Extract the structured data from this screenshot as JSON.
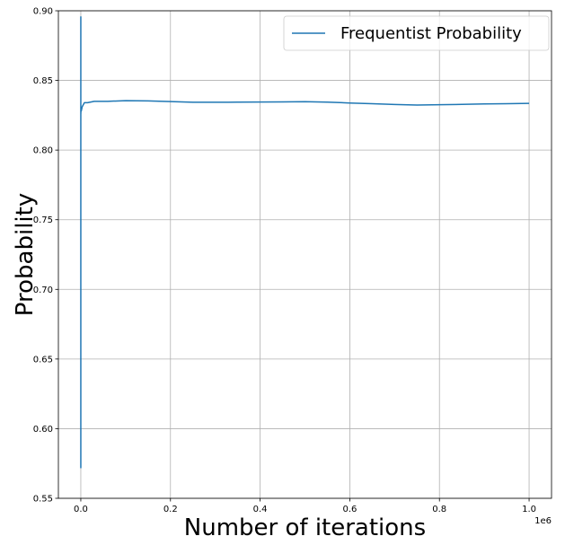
{
  "chart_data": {
    "type": "line",
    "title": "",
    "xlabel": "Number of iterations",
    "ylabel": "Probability",
    "x_offset_label": "1e6",
    "x_scale_factor": 1000000,
    "xlim": [
      -50000,
      1050000
    ],
    "ylim": [
      0.55,
      0.9
    ],
    "x_ticks": [
      0,
      200000,
      400000,
      600000,
      800000,
      1000000
    ],
    "x_tick_labels": [
      "0.0",
      "0.2",
      "0.4",
      "0.6",
      "0.8",
      "1.0"
    ],
    "y_ticks": [
      0.55,
      0.6,
      0.65,
      0.7,
      0.75,
      0.8,
      0.85,
      0.9
    ],
    "y_tick_labels": [
      "0.55",
      "0.60",
      "0.65",
      "0.70",
      "0.75",
      "0.80",
      "0.85",
      "0.90"
    ],
    "grid": true,
    "legend": {
      "placement": "top-right",
      "entries": [
        "Frequentist Probability"
      ]
    },
    "colors": {
      "series": "#1f77b4",
      "grid": "#b0b0b0"
    },
    "series": [
      {
        "name": "Frequentist Probability",
        "x": [
          1,
          2,
          3,
          5,
          8,
          12,
          20,
          40,
          100,
          300,
          1000,
          3000,
          8000,
          15000,
          30000,
          60000,
          100000,
          150000,
          200000,
          250000,
          300000,
          350000,
          400000,
          450000,
          500000,
          550000,
          600000,
          650000,
          700000,
          750000,
          800000,
          850000,
          900000,
          950000,
          1000000
        ],
        "y": [
          0.896,
          0.572,
          0.82,
          0.69,
          0.88,
          0.8,
          0.84,
          0.83,
          0.826,
          0.829,
          0.828,
          0.831,
          0.834,
          0.834,
          0.835,
          0.835,
          0.8355,
          0.8353,
          0.8348,
          0.8343,
          0.8343,
          0.8344,
          0.8345,
          0.8346,
          0.8347,
          0.8344,
          0.8338,
          0.8333,
          0.8327,
          0.8323,
          0.8326,
          0.8328,
          0.8331,
          0.8333,
          0.8335
        ]
      }
    ]
  }
}
